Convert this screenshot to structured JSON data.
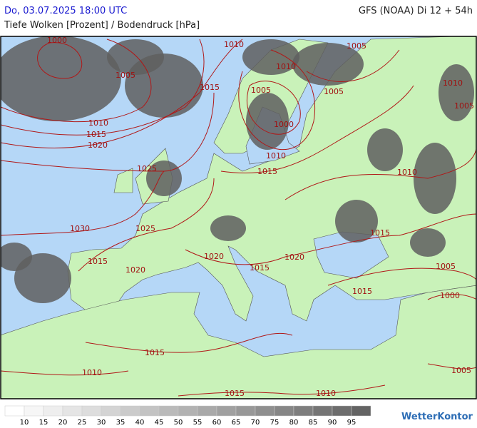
{
  "header": {
    "datetime": "Do, 03.07.2025 18:00 UTC",
    "model": "GFS (NOAA) Di 12 + 54h",
    "subtitle": "Tiefe Wolken [Prozent] / Bodendruck [hPa]"
  },
  "isobar_labels": [
    "1000",
    "1005",
    "1010",
    "1015",
    "1020",
    "1025",
    "1030",
    "1025",
    "1015",
    "1020",
    "1020",
    "1015",
    "1020",
    "1010",
    "1015",
    "1005",
    "1010",
    "1000",
    "1010",
    "1015",
    "1005",
    "1005",
    "1010",
    "1015",
    "1010",
    "1005",
    "1005",
    "1000",
    "1015",
    "1015",
    "1010",
    "1015",
    "1010",
    "1005"
  ],
  "legend": {
    "ticks": [
      10,
      15,
      20,
      25,
      30,
      35,
      40,
      45,
      50,
      55,
      60,
      65,
      70,
      75,
      80,
      85,
      90,
      95
    ]
  },
  "brand": "WetterKontor"
}
